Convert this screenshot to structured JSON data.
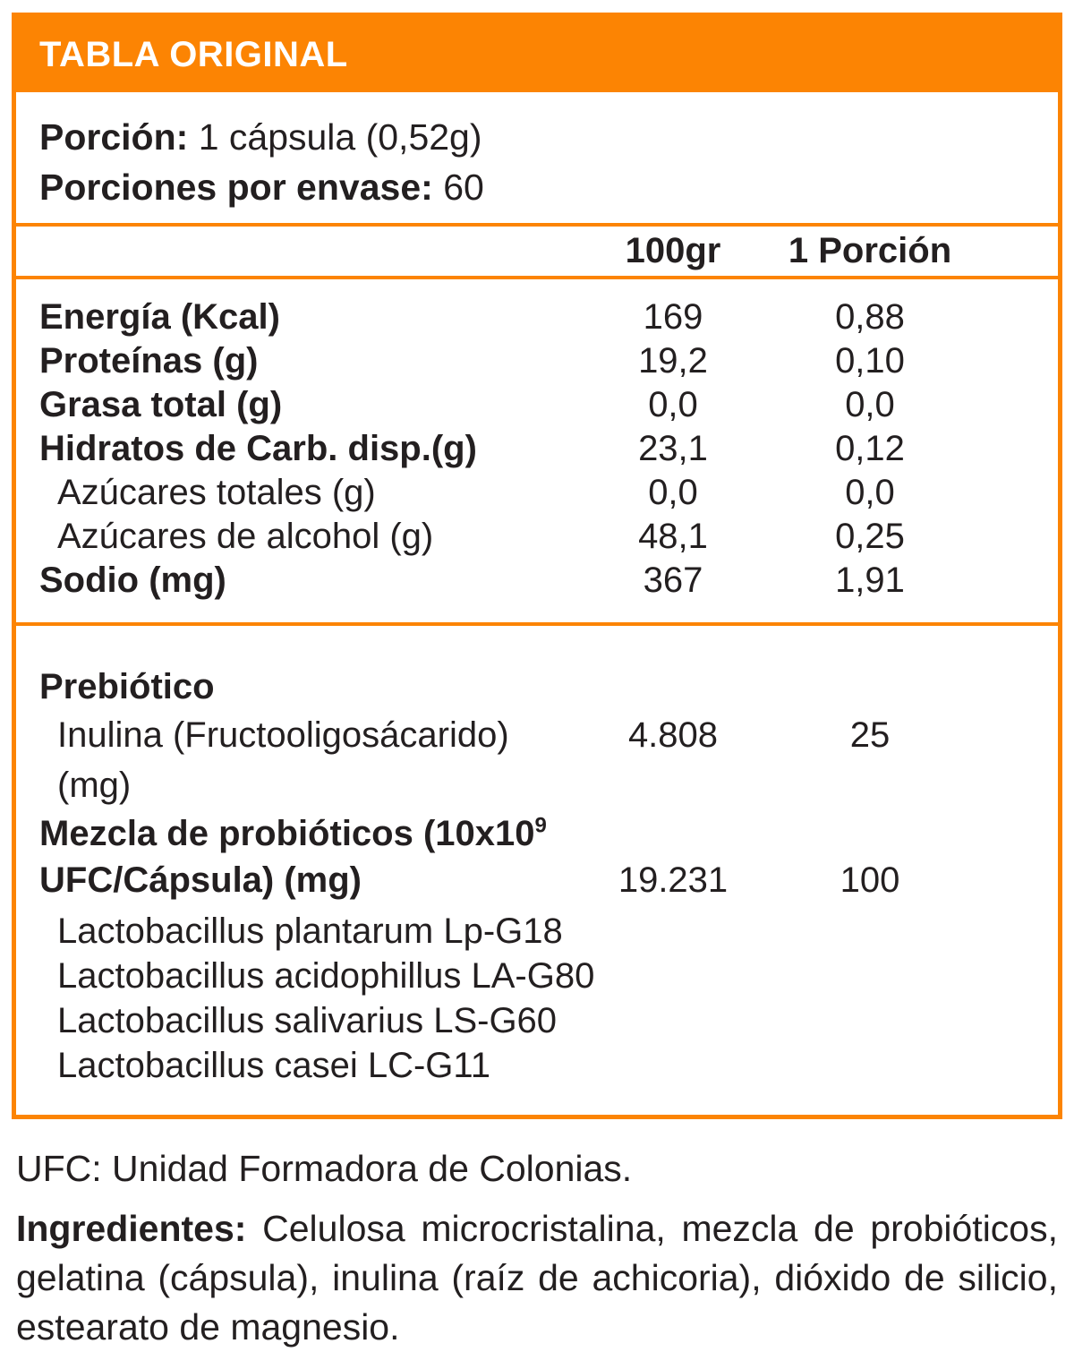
{
  "colors": {
    "accent": "#FC8403",
    "text": "#231F20"
  },
  "header": {
    "title": "TABLA ORIGINAL"
  },
  "serving": {
    "portion_label": "Porción:",
    "portion_value": "1 cápsula (0,52g)",
    "per_container_label": "Porciones por envase:",
    "per_container_value": "60"
  },
  "columns": {
    "col1": "100gr",
    "col2": "1 Porción"
  },
  "nutrients": {
    "rows": [
      {
        "label": "Energía (Kcal)",
        "per100": "169",
        "portion": "0,88"
      },
      {
        "label": "Proteínas (g)",
        "per100": "19,2",
        "portion": "0,10"
      },
      {
        "label": "Grasa total (g)",
        "per100": "0,0",
        "portion": "0,0"
      },
      {
        "label": "Hidratos de Carb. disp.(g)",
        "per100": "23,1",
        "portion": "0,12"
      },
      {
        "label": "Azúcares totales (g)",
        "per100": "0,0",
        "portion": "0,0"
      },
      {
        "label": "Azúcares de alcohol (g)",
        "per100": "48,1",
        "portion": "0,25"
      },
      {
        "label": "Sodio (mg)",
        "per100": "367",
        "portion": "1,91"
      }
    ]
  },
  "prebiotic": {
    "heading": "Prebiótico",
    "inulin": {
      "label": "Inulina (Fructooligosácarido) (mg)",
      "per100": "4.808",
      "portion": "25"
    },
    "mix": {
      "line1": "Mezcla de probióticos (10x10",
      "sup": "9",
      "line2": "UFC/Cápsula) (mg)",
      "per100": "19.231",
      "portion": "100"
    },
    "strains": [
      "Lactobacillus plantarum Lp-G18",
      "Lactobacillus acidophillus LA-G80",
      "Lactobacillus salivarius LS-G60",
      "Lactobacillus casei LC-G11"
    ]
  },
  "footer": {
    "ufc_note": "UFC: Unidad Formadora de Colonias.",
    "ingredients_label": "Ingredientes:",
    "ingredients_text": " Celulosa microcristalina, mezcla de probióticos, gelatina (cápsula), inulina (raíz de achicoria), dióxido de silicio, estearato de magnesio."
  }
}
